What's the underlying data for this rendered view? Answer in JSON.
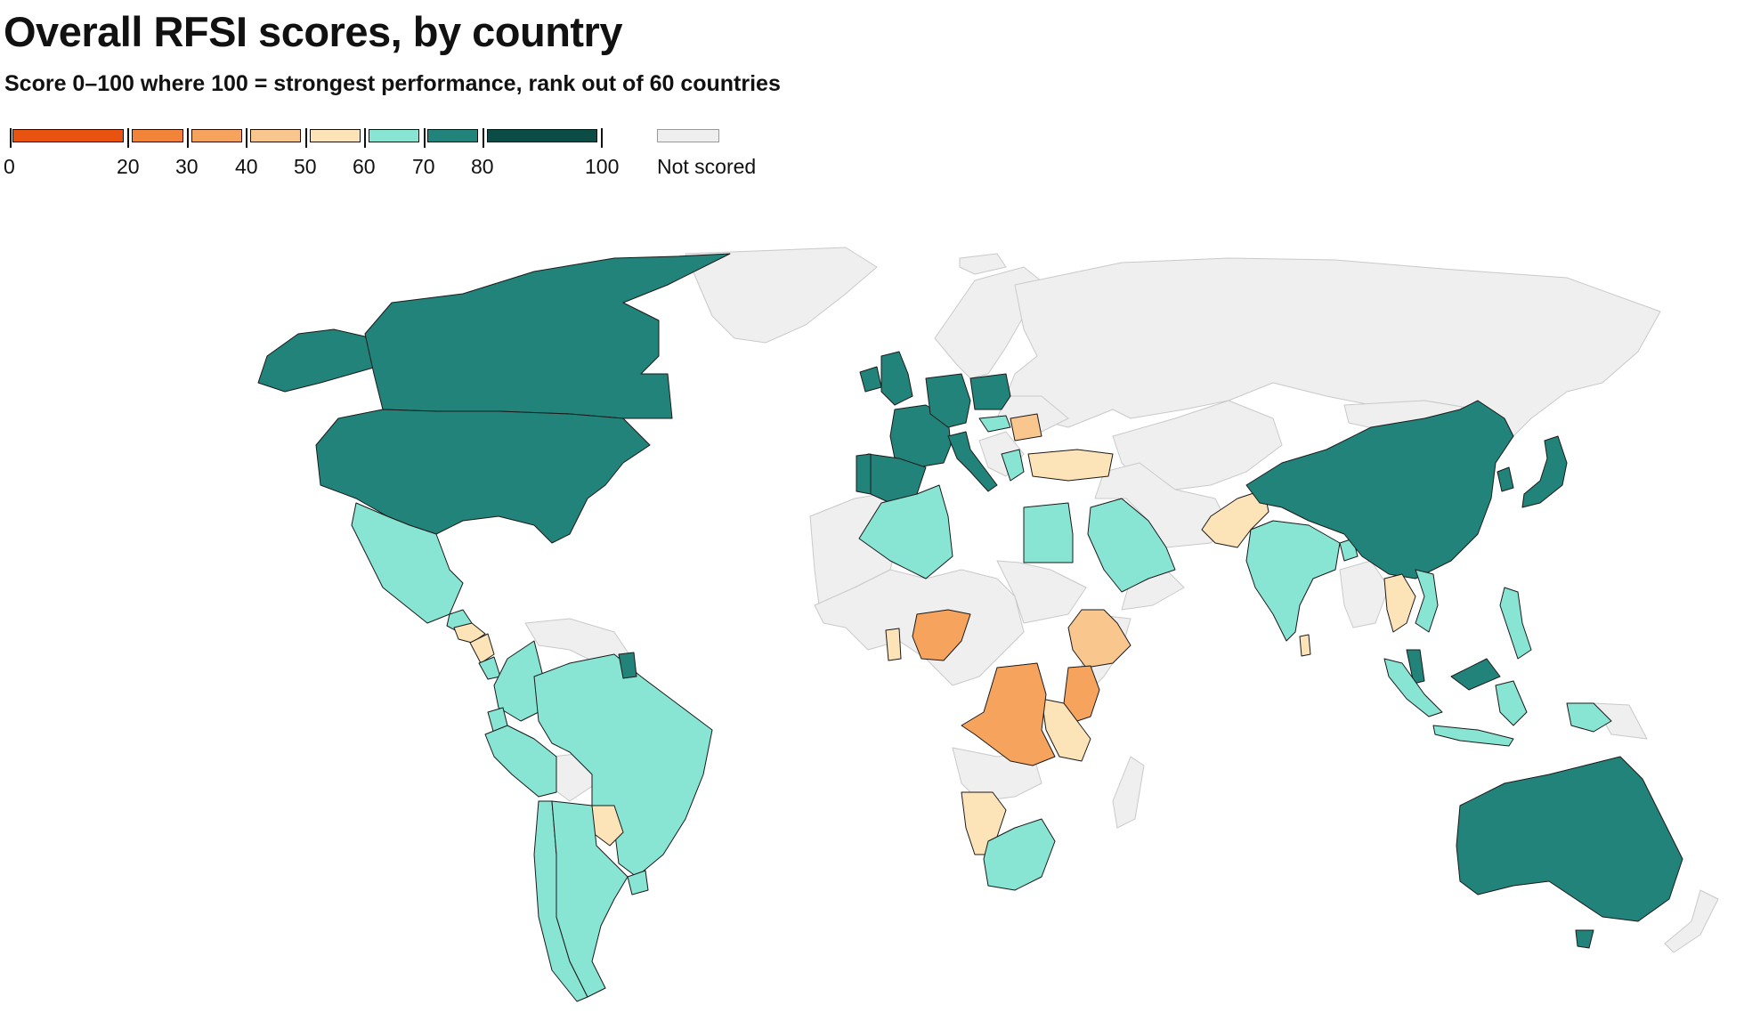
{
  "title": "Overall RFSI scores, by country",
  "subtitle": "Score 0–100 where 100 = strongest performance, rank out of 60 countries",
  "legend": {
    "bins": [
      {
        "from": 0,
        "to": 20,
        "color": "#e8540f"
      },
      {
        "from": 20,
        "to": 30,
        "color": "#f2843a"
      },
      {
        "from": 30,
        "to": 40,
        "color": "#f6a35e"
      },
      {
        "from": 40,
        "to": 50,
        "color": "#f9c68d"
      },
      {
        "from": 50,
        "to": 60,
        "color": "#fde3b8"
      },
      {
        "from": 60,
        "to": 70,
        "color": "#88e5d4"
      },
      {
        "from": 70,
        "to": 80,
        "color": "#22837a"
      },
      {
        "from": 80,
        "to": 100,
        "color": "#0b4d46"
      }
    ],
    "tick_labels": [
      "0",
      "20",
      "30",
      "40",
      "50",
      "60",
      "70",
      "80",
      "100"
    ],
    "not_scored_label": "Not scored",
    "not_scored_color": "#efefef"
  },
  "colors": {
    "land_not_scored": "#efefef",
    "border": "#1a1a1a"
  },
  "map_data": {
    "type": "choropleth",
    "regions": [
      {
        "id": "canada",
        "bin": 6
      },
      {
        "id": "usa",
        "bin": 6
      },
      {
        "id": "alaska",
        "bin": 6
      },
      {
        "id": "mexico",
        "bin": 5
      },
      {
        "id": "guatemala",
        "bin": 5
      },
      {
        "id": "honduras",
        "bin": 4
      },
      {
        "id": "nicaragua",
        "bin": 4
      },
      {
        "id": "costa-rica",
        "bin": 5
      },
      {
        "id": "colombia",
        "bin": 5
      },
      {
        "id": "ecuador",
        "bin": 5
      },
      {
        "id": "peru",
        "bin": 5
      },
      {
        "id": "brazil",
        "bin": 5
      },
      {
        "id": "paraguay",
        "bin": 4
      },
      {
        "id": "chile",
        "bin": 5
      },
      {
        "id": "argentina",
        "bin": 5
      },
      {
        "id": "uruguay",
        "bin": 5
      },
      {
        "id": "french-guiana",
        "bin": 6
      },
      {
        "id": "united-kingdom",
        "bin": 6
      },
      {
        "id": "ireland",
        "bin": 6
      },
      {
        "id": "france",
        "bin": 6
      },
      {
        "id": "spain",
        "bin": 6
      },
      {
        "id": "portugal",
        "bin": 6
      },
      {
        "id": "germany",
        "bin": 6
      },
      {
        "id": "poland",
        "bin": 6
      },
      {
        "id": "italy",
        "bin": 6
      },
      {
        "id": "hungary",
        "bin": 5
      },
      {
        "id": "romania",
        "bin": 3
      },
      {
        "id": "greece",
        "bin": 5
      },
      {
        "id": "turkey",
        "bin": 4
      },
      {
        "id": "algeria",
        "bin": 5
      },
      {
        "id": "egypt",
        "bin": 5
      },
      {
        "id": "saudi-arabia",
        "bin": 5
      },
      {
        "id": "nigeria",
        "bin": 2
      },
      {
        "id": "ghana",
        "bin": 4
      },
      {
        "id": "ethiopia",
        "bin": 3
      },
      {
        "id": "kenya",
        "bin": 2
      },
      {
        "id": "tanzania",
        "bin": 4
      },
      {
        "id": "dr-congo",
        "bin": 2
      },
      {
        "id": "namibia",
        "bin": 4
      },
      {
        "id": "south-africa",
        "bin": 5
      },
      {
        "id": "pakistan",
        "bin": 4
      },
      {
        "id": "india",
        "bin": 5
      },
      {
        "id": "sri-lanka",
        "bin": 4
      },
      {
        "id": "bangladesh",
        "bin": 5
      },
      {
        "id": "china",
        "bin": 6
      },
      {
        "id": "japan",
        "bin": 6
      },
      {
        "id": "south-korea",
        "bin": 6
      },
      {
        "id": "thailand",
        "bin": 4
      },
      {
        "id": "vietnam",
        "bin": 5
      },
      {
        "id": "malaysia",
        "bin": 6
      },
      {
        "id": "philippines",
        "bin": 5
      },
      {
        "id": "indonesia",
        "bin": 5
      },
      {
        "id": "australia",
        "bin": 6
      }
    ]
  }
}
